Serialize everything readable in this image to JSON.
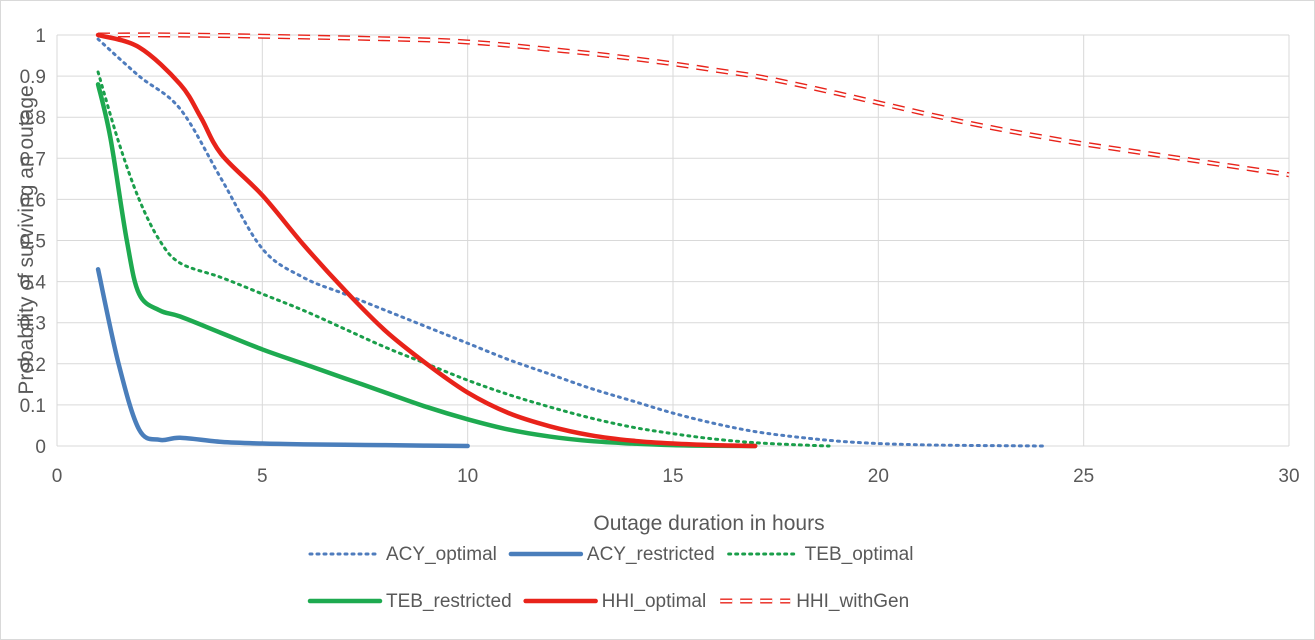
{
  "chart_data": {
    "type": "line",
    "xlabel": "Outage duration in hours",
    "ylabel": "Probability of surviving an outage",
    "xlim": [
      0,
      30
    ],
    "ylim": [
      0,
      1
    ],
    "xticks": [
      "0",
      "5",
      "10",
      "15",
      "20",
      "25",
      "30"
    ],
    "yticks": [
      "0",
      "0.1",
      "0.2",
      "0.3",
      "0.4",
      "0.5",
      "0.6",
      "0.7",
      "0.8",
      "0.9",
      "1"
    ],
    "grid": true,
    "legend_position": "bottom",
    "series": [
      {
        "name": "ACY_optimal",
        "color": "#4f7cbd",
        "style": "dotted",
        "points": [
          [
            1,
            0.99
          ],
          [
            2,
            0.9
          ],
          [
            3,
            0.82
          ],
          [
            4,
            0.65
          ],
          [
            5,
            0.48
          ],
          [
            6,
            0.41
          ],
          [
            7,
            0.37
          ],
          [
            8,
            0.33
          ],
          [
            9,
            0.29
          ],
          [
            10,
            0.25
          ],
          [
            11,
            0.21
          ],
          [
            12,
            0.175
          ],
          [
            13,
            0.14
          ],
          [
            14,
            0.11
          ],
          [
            15,
            0.08
          ],
          [
            16,
            0.055
          ],
          [
            17,
            0.035
          ],
          [
            18,
            0.022
          ],
          [
            19,
            0.012
          ],
          [
            20,
            0.006
          ],
          [
            21,
            0.003
          ],
          [
            22,
            0.0015
          ],
          [
            23,
            0.0007
          ],
          [
            24,
            0
          ]
        ]
      },
      {
        "name": "ACY_restricted",
        "color": "#4a7ebb",
        "style": "solid",
        "points": [
          [
            1,
            0.43
          ],
          [
            1.5,
            0.2
          ],
          [
            2,
            0.04
          ],
          [
            2.5,
            0.015
          ],
          [
            3,
            0.02
          ],
          [
            4,
            0.01
          ],
          [
            5,
            0.006
          ],
          [
            6,
            0.004
          ],
          [
            7,
            0.003
          ],
          [
            8,
            0.002
          ],
          [
            9,
            0.001
          ],
          [
            10,
            0
          ]
        ]
      },
      {
        "name": "TEB_optimal",
        "color": "#1a9e4a",
        "style": "dotted",
        "points": [
          [
            1,
            0.91
          ],
          [
            1.5,
            0.74
          ],
          [
            2,
            0.6
          ],
          [
            2.5,
            0.5
          ],
          [
            3,
            0.445
          ],
          [
            4,
            0.41
          ],
          [
            5,
            0.37
          ],
          [
            6,
            0.33
          ],
          [
            7,
            0.285
          ],
          [
            8,
            0.24
          ],
          [
            9,
            0.2
          ],
          [
            10,
            0.16
          ],
          [
            11,
            0.125
          ],
          [
            12,
            0.095
          ],
          [
            13,
            0.068
          ],
          [
            14,
            0.046
          ],
          [
            15,
            0.03
          ],
          [
            16,
            0.017
          ],
          [
            17,
            0.008
          ],
          [
            18,
            0.003
          ],
          [
            18.8,
            0
          ]
        ]
      },
      {
        "name": "TEB_restricted",
        "color": "#1eaa50",
        "style": "solid",
        "points": [
          [
            1,
            0.88
          ],
          [
            1.3,
            0.75
          ],
          [
            1.7,
            0.5
          ],
          [
            2,
            0.37
          ],
          [
            2.5,
            0.33
          ],
          [
            3,
            0.315
          ],
          [
            4,
            0.275
          ],
          [
            5,
            0.235
          ],
          [
            6,
            0.2
          ],
          [
            7,
            0.165
          ],
          [
            8,
            0.13
          ],
          [
            9,
            0.095
          ],
          [
            10,
            0.065
          ],
          [
            11,
            0.04
          ],
          [
            12,
            0.023
          ],
          [
            13,
            0.012
          ],
          [
            14,
            0.006
          ],
          [
            15,
            0.002
          ],
          [
            16,
            0.0005
          ],
          [
            17,
            0
          ]
        ]
      },
      {
        "name": "HHI_optimal",
        "color": "#e8231a",
        "style": "solid",
        "points": [
          [
            1,
            1.0
          ],
          [
            2,
            0.97
          ],
          [
            3,
            0.88
          ],
          [
            3.5,
            0.8
          ],
          [
            4,
            0.71
          ],
          [
            5,
            0.61
          ],
          [
            6,
            0.49
          ],
          [
            7,
            0.38
          ],
          [
            8,
            0.28
          ],
          [
            9,
            0.2
          ],
          [
            10,
            0.13
          ],
          [
            11,
            0.08
          ],
          [
            12,
            0.048
          ],
          [
            13,
            0.026
          ],
          [
            14,
            0.013
          ],
          [
            15,
            0.006
          ],
          [
            16,
            0.002
          ],
          [
            17,
            0
          ]
        ]
      },
      {
        "name": "HHI_withGen",
        "color": "#e8231a",
        "style": "dashed",
        "points": [
          [
            1,
            1.0
          ],
          [
            3,
            1.0
          ],
          [
            5,
            0.997
          ],
          [
            7,
            0.993
          ],
          [
            9,
            0.988
          ],
          [
            10,
            0.983
          ],
          [
            11,
            0.975
          ],
          [
            12,
            0.965
          ],
          [
            13,
            0.955
          ],
          [
            14,
            0.943
          ],
          [
            15,
            0.93
          ],
          [
            16,
            0.915
          ],
          [
            17,
            0.9
          ],
          [
            18,
            0.88
          ],
          [
            19,
            0.858
          ],
          [
            20,
            0.835
          ],
          [
            21,
            0.812
          ],
          [
            22,
            0.79
          ],
          [
            23,
            0.77
          ],
          [
            24,
            0.752
          ],
          [
            25,
            0.735
          ],
          [
            26,
            0.72
          ],
          [
            27,
            0.705
          ],
          [
            28,
            0.69
          ],
          [
            29,
            0.675
          ],
          [
            30,
            0.66
          ]
        ]
      }
    ]
  }
}
